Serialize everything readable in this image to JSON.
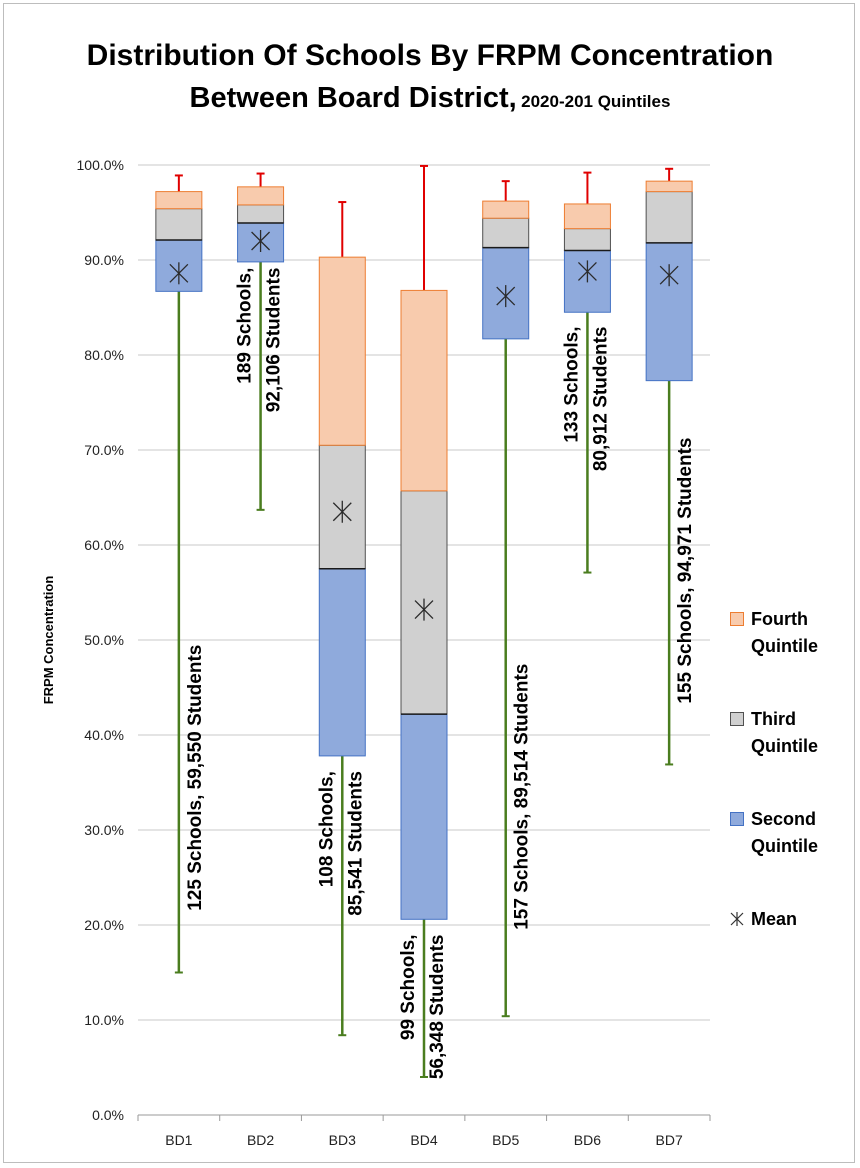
{
  "title": {
    "line1": "Distribution Of Schools By FRPM Concentration",
    "line2": "Between Board District,",
    "subtitle": "2020-201 Quintiles"
  },
  "chart_data": {
    "type": "box",
    "title": "Distribution Of Schools By FRPM Concentration Between Board District, 2020-201 Quintiles",
    "ylabel": "FRPM Concentration",
    "xlabel": "",
    "ylim": [
      0,
      100
    ],
    "y_ticks": [
      "0.0%",
      "10.0%",
      "20.0%",
      "30.0%",
      "40.0%",
      "50.0%",
      "60.0%",
      "70.0%",
      "80.0%",
      "90.0%",
      "100.0%"
    ],
    "categories": [
      "BD1",
      "BD2",
      "BD3",
      "BD4",
      "BD5",
      "BD6",
      "BD7"
    ],
    "grid": true,
    "legend_position": "right",
    "colors": {
      "fourth": "#f8cbad",
      "fourth_border": "#ed7d31",
      "third": "#d0d0d0",
      "third_border": "#505050",
      "second": "#8faadc",
      "second_border": "#4472c4",
      "upper_whisker": "#e00000",
      "lower_whisker": "#4a7d1f"
    },
    "series": [
      {
        "name": "BD1",
        "min": 15.0,
        "q1": 86.7,
        "median": 92.1,
        "q3": 95.4,
        "upper": 97.2,
        "max": 98.9,
        "mean": 88.6,
        "label": [
          "125 Schools, 59,550 Students"
        ]
      },
      {
        "name": "BD2",
        "min": 63.7,
        "q1": 89.8,
        "median": 93.9,
        "q3": 95.8,
        "upper": 97.7,
        "max": 99.1,
        "mean": 92.0,
        "label": [
          "189 Schools,",
          "92,106  Students"
        ]
      },
      {
        "name": "BD3",
        "min": 8.4,
        "q1": 37.8,
        "median": 57.5,
        "q3": 70.5,
        "upper": 90.3,
        "max": 96.1,
        "mean": 63.5,
        "label": [
          "108 Schools,",
          "85,541 Students"
        ]
      },
      {
        "name": "BD4",
        "min": 4.0,
        "q1": 20.6,
        "median": 42.2,
        "q3": 65.7,
        "upper": 86.8,
        "max": 99.9,
        "mean": 53.2,
        "label": [
          "99 Schools,",
          "56,348  Students"
        ]
      },
      {
        "name": "BD5",
        "min": 10.4,
        "q1": 81.7,
        "median": 91.3,
        "q3": 94.4,
        "upper": 96.2,
        "max": 98.3,
        "mean": 86.2,
        "label": [
          "157 Schools, 89,514  Students"
        ]
      },
      {
        "name": "BD6",
        "min": 57.1,
        "q1": 84.5,
        "median": 91.0,
        "q3": 93.3,
        "upper": 95.9,
        "max": 99.2,
        "mean": 88.8,
        "label": [
          "133 Schools,",
          "80,912  Students"
        ]
      },
      {
        "name": "BD7",
        "min": 36.9,
        "q1": 77.3,
        "median": 91.8,
        "q3": 97.2,
        "upper": 98.3,
        "max": 99.6,
        "mean": 88.4,
        "label": [
          "155 Schools, 94,971 Students"
        ]
      }
    ]
  },
  "legend": {
    "fourth": [
      "Fourth",
      "Quintile"
    ],
    "third": [
      "Third",
      "Quintile"
    ],
    "second": [
      "Second",
      "Quintile"
    ],
    "mean": "Mean"
  }
}
